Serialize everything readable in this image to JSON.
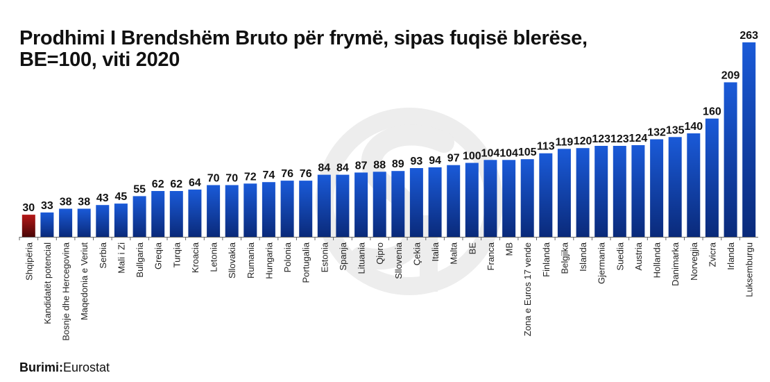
{
  "chart_data": {
    "type": "bar",
    "title_line1": "Prodhimi I Brendshëm Bruto për frymë, sipas fuqisë blerëse,",
    "title_line2": "BE=100, viti 2020",
    "categories": [
      "Shqipëria",
      "Kandidatët potencial",
      "Bosnje dhe Hercegovina",
      "Maqedonia e Veriut",
      "Serbia",
      "Mali i Zi",
      "Bullgaria",
      "Greqia",
      "Turqia",
      "Kroacia",
      "Letonia",
      "Sllovakia",
      "Rumania",
      "Hungaria",
      "Polonia",
      "Portugalia",
      "Estonia",
      "Spanja",
      "Lituania",
      "Qipro",
      "Sllovenia",
      "Çekia",
      "Italia",
      "Malta",
      "BE",
      "Franca",
      "MB",
      "Zona e Euros 17 vende",
      "Finlanda",
      "Belgjika",
      "Islanda",
      "Gjermania",
      "Suedia",
      "Austria",
      "Hollanda",
      "Danimarka",
      "Norvegjia",
      "Zvicra",
      "Irlanda",
      "Luksemburgu"
    ],
    "values": [
      30,
      33,
      38,
      38,
      43,
      45,
      55,
      62,
      62,
      64,
      70,
      70,
      72,
      74,
      76,
      76,
      84,
      84,
      87,
      88,
      89,
      93,
      94,
      97,
      100,
      104,
      104,
      105,
      113,
      119,
      120,
      123,
      123,
      124,
      132,
      135,
      140,
      160,
      209,
      263
    ],
    "ylim": [
      0,
      263
    ],
    "grid": false,
    "colors": {
      "bar": "#1a5ad8",
      "bar_dark": "#0a2a7a",
      "highlight": "#b51818",
      "highlight_dark": "#4a0606"
    },
    "highlight_category": "Shqipëria"
  },
  "footer": {
    "source_label": "Burimi:",
    "source_value": "Eurostat"
  }
}
